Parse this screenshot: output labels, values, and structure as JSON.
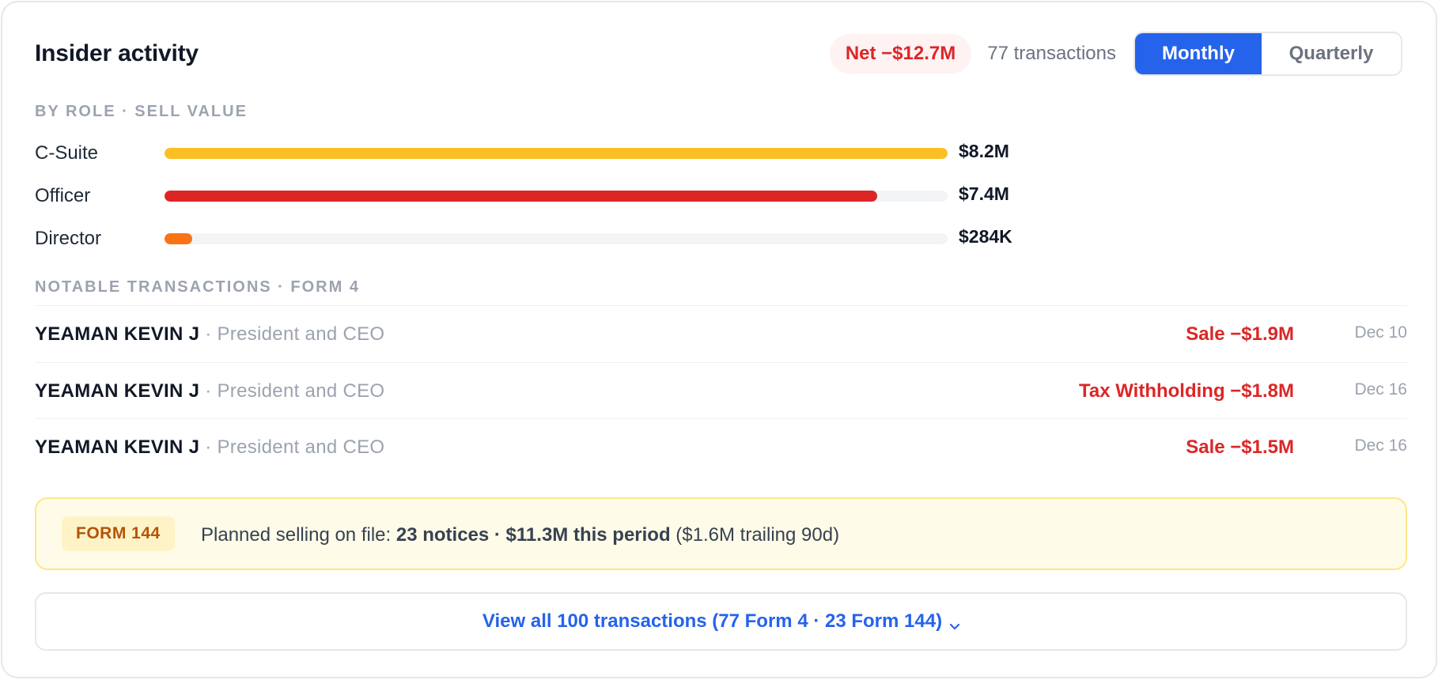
{
  "header": {
    "title": "Insider activity",
    "net_badge": "Net −$12.7M",
    "transaction_count": "77 transactions",
    "toggle": {
      "monthly": "Monthly",
      "quarterly": "Quarterly",
      "selected": "Monthly"
    }
  },
  "by_role": {
    "label": "BY ROLE · SELL VALUE",
    "roles": [
      {
        "name": "C-Suite",
        "value": "$8.2M",
        "fill_fraction": 1.0,
        "color": "#fbbf24"
      },
      {
        "name": "Officer",
        "value": "$7.4M",
        "fill_fraction": 0.91,
        "color": "#dc2626"
      },
      {
        "name": "Director",
        "value": "$284K",
        "fill_fraction": 0.035,
        "color": "#f97316"
      }
    ]
  },
  "notable": {
    "label": "NOTABLE TRANSACTIONS · FORM 4",
    "transactions": [
      {
        "name": "YEAMAN KEVIN J",
        "separator": "·",
        "role": "President and CEO",
        "action": "Sale −$1.9M",
        "date": "Dec 10"
      },
      {
        "name": "YEAMAN KEVIN J",
        "separator": "·",
        "role": "President and CEO",
        "action": "Tax Withholding −$1.8M",
        "date": "Dec 16"
      },
      {
        "name": "YEAMAN KEVIN J",
        "separator": "·",
        "role": "President and CEO",
        "action": "Sale −$1.5M",
        "date": "Dec 16"
      }
    ]
  },
  "form144": {
    "tag": "FORM 144",
    "prefix": "Planned selling on file: ",
    "bold": "23 notices · $11.3M this period",
    "suffix": " ($1.6M trailing 90d)"
  },
  "view_all": {
    "label": "View all 100 transactions (77 Form 4 · 23 Form 144)",
    "icon": "chevron-down-icon"
  },
  "colors": {
    "accent": "#2563eb",
    "negative": "#dc2626",
    "form144_bg": "#fefce8"
  }
}
